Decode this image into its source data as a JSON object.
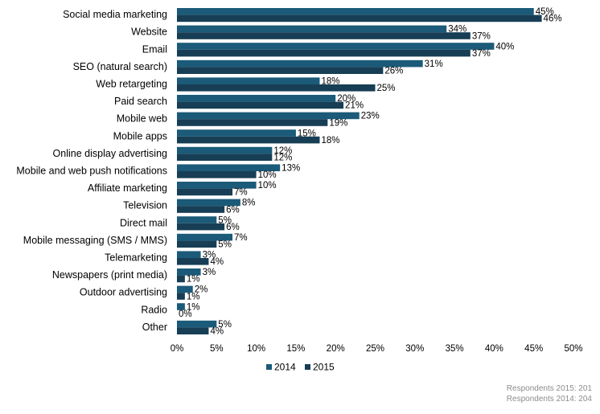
{
  "chart_data": {
    "type": "bar",
    "orientation": "horizontal",
    "categories": [
      "Social media marketing",
      "Website",
      "Email",
      "SEO (natural search)",
      "Web retargeting",
      "Paid search",
      "Mobile web",
      "Mobile apps",
      "Online display advertising",
      "Mobile and web push notifications",
      "Affiliate marketing",
      "Television",
      "Direct mail",
      "Mobile messaging (SMS / MMS)",
      "Telemarketing",
      "Newspapers (print media)",
      "Outdoor advertising",
      "Radio",
      "Other"
    ],
    "series": [
      {
        "name": "2014",
        "color": "#1b5a78",
        "values": [
          45,
          34,
          40,
          31,
          18,
          20,
          23,
          15,
          12,
          13,
          10,
          8,
          5,
          7,
          3,
          3,
          2,
          1,
          5
        ]
      },
      {
        "name": "2015",
        "color": "#173e55",
        "values": [
          46,
          37,
          37,
          26,
          25,
          21,
          19,
          18,
          12,
          10,
          7,
          6,
          6,
          5,
          4,
          1,
          1,
          0,
          4
        ]
      }
    ],
    "value_suffix": "%",
    "xlim": [
      0,
      50
    ],
    "xticks": [
      "0%",
      "5%",
      "10%",
      "15%",
      "20%",
      "25%",
      "30%",
      "35%",
      "40%",
      "45%",
      "50%"
    ],
    "grid": false,
    "legend_position": "bottom"
  },
  "notes": {
    "respondents_2015": "Respondents 2015: 201",
    "respondents_2014": "Respondents 2014: 204"
  }
}
